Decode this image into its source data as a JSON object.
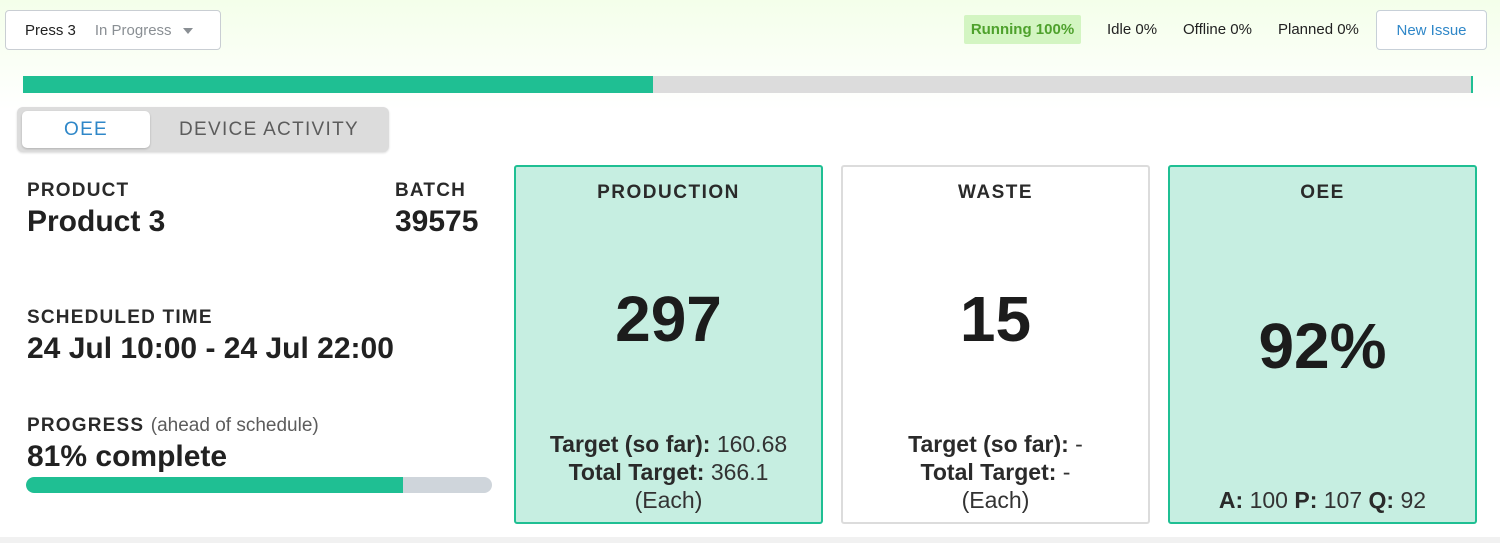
{
  "header": {
    "machine": "Press 3",
    "state": "In Progress",
    "status": {
      "running": "Running 100%",
      "idle": "Idle 0%",
      "offline": "Offline 0%",
      "planned": "Planned 0%"
    },
    "new_issue_label": "New Issue"
  },
  "timeline": {
    "progress_fraction": 0.435
  },
  "tabs": [
    {
      "label": "OEE",
      "active": true
    },
    {
      "label": "DEVICE ACTIVITY",
      "active": false
    }
  ],
  "info": {
    "product_label": "PRODUCT",
    "product_value": "Product 3",
    "batch_label": "BATCH",
    "batch_value": "39575",
    "scheduled_label": "SCHEDULED TIME",
    "scheduled_value": "24 Jul 10:00 - 24 Jul 22:00",
    "progress_label": "PROGRESS",
    "progress_note": "(ahead of schedule)",
    "progress_value": "81% complete",
    "progress_fraction": 0.81
  },
  "cards": {
    "production": {
      "title": "PRODUCTION",
      "value": "297",
      "target_label": "Target (so far):",
      "target_value": "160.68",
      "total_label": "Total Target:",
      "total_value": "366.1",
      "unit": "(Each)"
    },
    "waste": {
      "title": "WASTE",
      "value": "15",
      "target_label": "Target (so far):",
      "target_value": "-",
      "total_label": "Total Target:",
      "total_value": "-",
      "unit": "(Each)"
    },
    "oee": {
      "title": "OEE",
      "value": "92%",
      "a_label": "A:",
      "a_value": "100",
      "p_label": "P:",
      "p_value": "107",
      "q_label": "Q:",
      "q_value": "92"
    }
  },
  "colors": {
    "accent": "#1fbf93",
    "running_bg": "#d3f5c2",
    "running_text": "#4ea12c",
    "link": "#2f87c8",
    "card_fill": "#c6eee1"
  }
}
